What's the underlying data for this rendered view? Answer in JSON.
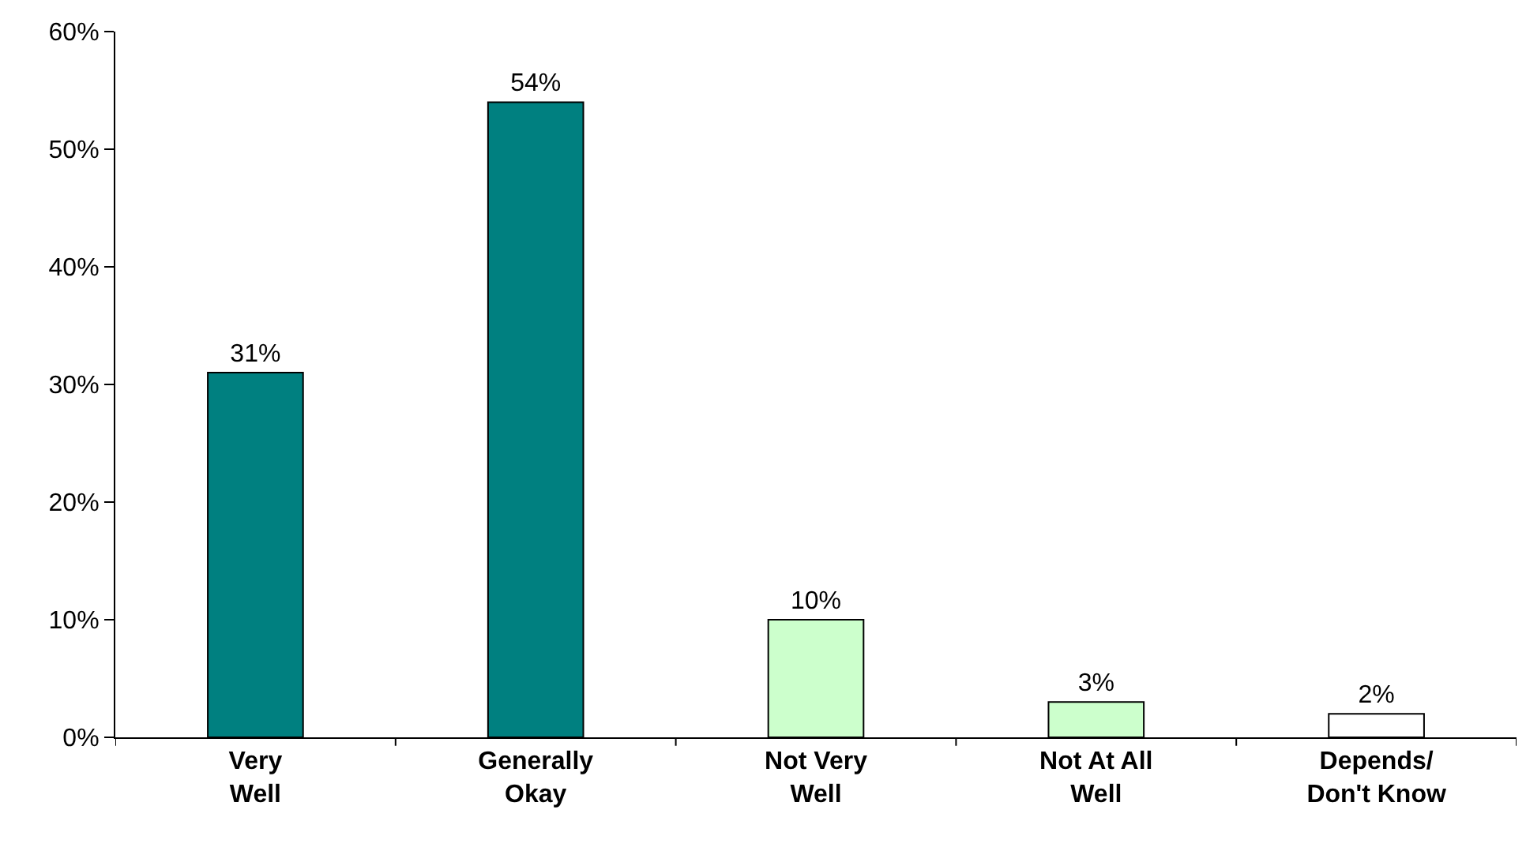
{
  "chart_data": {
    "type": "bar",
    "categories": [
      "Very\nWell",
      "Generally\nOkay",
      "Not Very\nWell",
      "Not At All\nWell",
      "Depends/\nDon't Know"
    ],
    "values": [
      31,
      54,
      10,
      3,
      2
    ],
    "colors": [
      "#008080",
      "#008080",
      "#ccffcc",
      "#ccffcc",
      "#ffffff"
    ],
    "value_labels": [
      "31%",
      "54%",
      "10%",
      "3%",
      "2%"
    ],
    "ylim": [
      0,
      60
    ],
    "yticks": [
      {
        "value": 0,
        "label": "0%"
      },
      {
        "value": 10,
        "label": "10%"
      },
      {
        "value": 20,
        "label": "20%"
      },
      {
        "value": 30,
        "label": "30%"
      },
      {
        "value": 40,
        "label": "40%"
      },
      {
        "value": 50,
        "label": "50%"
      },
      {
        "value": 60,
        "label": "60%"
      }
    ],
    "grid": false,
    "legend": false
  }
}
